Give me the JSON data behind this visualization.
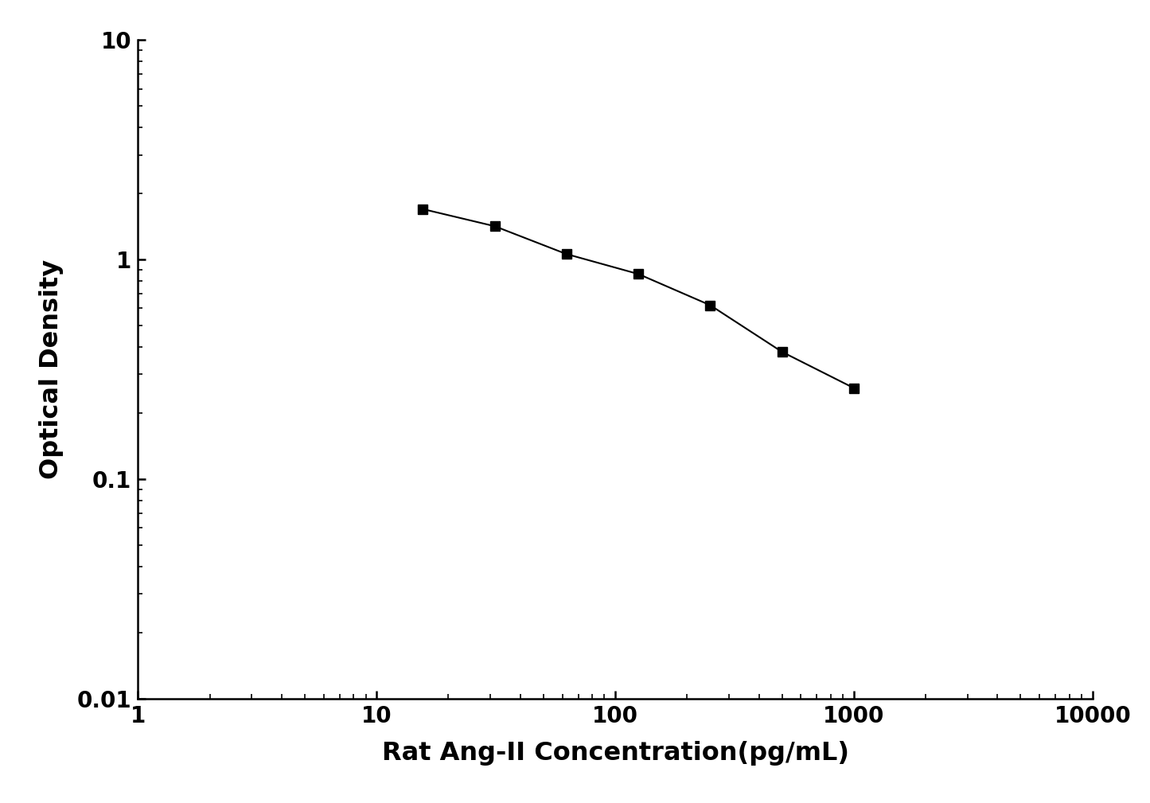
{
  "x": [
    15.6,
    31.25,
    62.5,
    125,
    250,
    500,
    1000
  ],
  "y": [
    1.7,
    1.42,
    1.06,
    0.86,
    0.62,
    0.38,
    0.26
  ],
  "xlabel": "Rat Ang-II Concentration(pg/mL)",
  "ylabel": "Optical Density",
  "xlim": [
    1,
    10000
  ],
  "ylim": [
    0.01,
    10
  ],
  "line_color": "#000000",
  "marker": "s",
  "markersize": 8,
  "linewidth": 1.5,
  "background_color": "#ffffff",
  "xlabel_fontsize": 23,
  "ylabel_fontsize": 23,
  "tick_fontsize": 20,
  "tick_fontweight": "bold",
  "label_fontweight": "bold"
}
